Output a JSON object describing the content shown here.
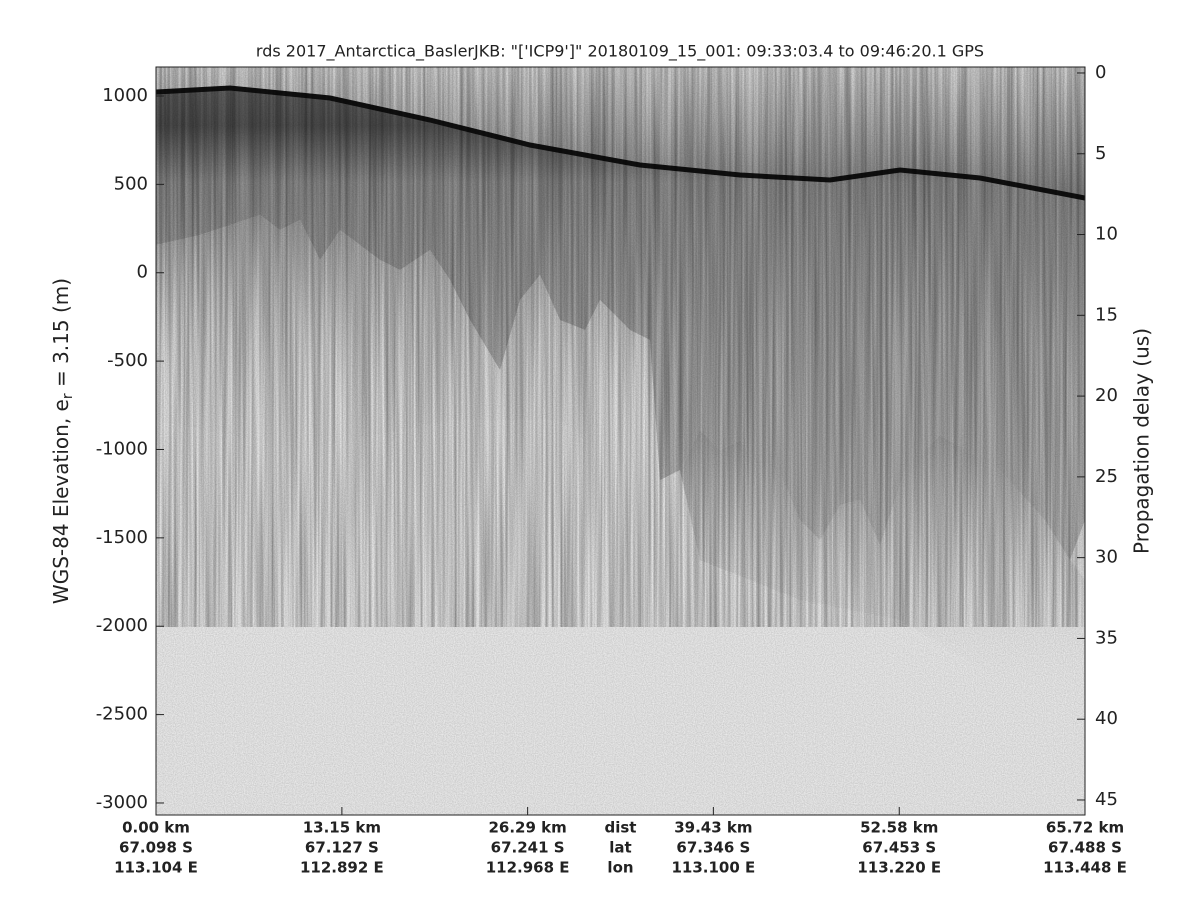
{
  "chart_data": {
    "type": "radargram",
    "title": "rds 2017_Antarctica_BaslerJKB: \"['ICP9']\"  20180109_15_001: 09:33:03.4 to 09:46:20.1 GPS",
    "ylabel_parts": [
      "WGS-84 Elevation, e",
      "r",
      " = 3.15 (m)"
    ],
    "y2label": "Propagation delay (us)",
    "ylim": [
      -3068,
      1164
    ],
    "yticks": [
      -3000,
      -2500,
      -2000,
      -1500,
      -1000,
      -500,
      0,
      500,
      1000
    ],
    "y2lim": [
      45.93,
      -0.37
    ],
    "y2ticks": [
      0,
      5,
      10,
      15,
      20,
      25,
      30,
      35,
      40,
      45
    ],
    "xlim": [
      0,
      65.72
    ],
    "xticks": [
      {
        "value": 0,
        "label": "0.00 km"
      },
      {
        "value": 13.15,
        "label": "13.15 km"
      },
      {
        "value": 26.29,
        "label": "26.29 km"
      },
      {
        "value": 39.43,
        "label": "39.43 km"
      },
      {
        "value": 52.58,
        "label": "52.58 km"
      },
      {
        "value": 65.72,
        "label": "65.72 km"
      }
    ],
    "lat_labels": [
      "67.098 S",
      "67.127 S",
      "67.241 S",
      "67.346 S",
      "67.453 S",
      "67.488 S"
    ],
    "lon_labels": [
      "113.104 E",
      "112.892 E",
      "112.968 E",
      "113.100 E",
      "113.220 E",
      "113.448 E"
    ],
    "x_row_labels": [
      "dist",
      "lat",
      "lon"
    ],
    "x_row_label_at": 32.86,
    "colormap": "gray"
  }
}
